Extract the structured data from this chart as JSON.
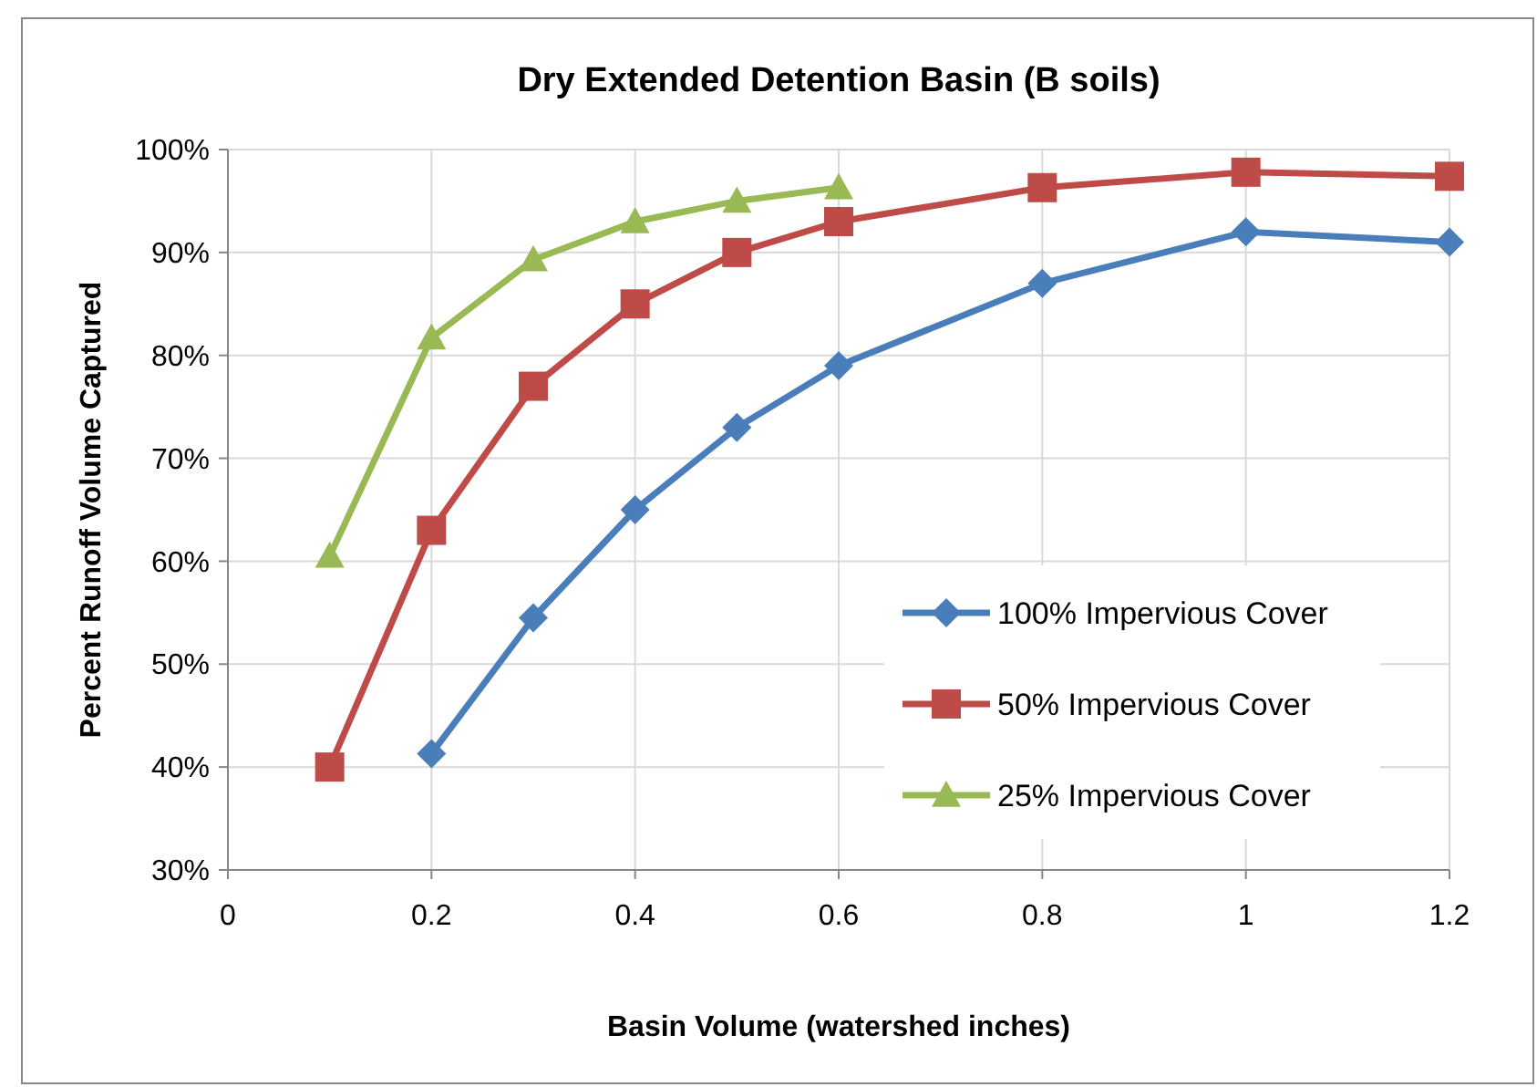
{
  "chart_data": {
    "type": "line",
    "title": "Dry Extended Detention Basin  (B soils)",
    "xlabel": "Basin Volume (watershed inches)",
    "ylabel": "Percent Runoff Volume Captured",
    "xlim": [
      0,
      1.2
    ],
    "xticks": [
      0,
      0.2,
      0.4,
      0.6,
      0.8,
      1,
      1.2
    ],
    "ylim": [
      0.3,
      1
    ],
    "yticks": [
      {
        "value": 0.3,
        "label": "30%"
      },
      {
        "value": 0.4,
        "label": "40%"
      },
      {
        "value": 0.5,
        "label": "50%"
      },
      {
        "value": 0.6,
        "label": "60%"
      },
      {
        "value": 0.7,
        "label": "70%"
      },
      {
        "value": 0.8,
        "label": "80%"
      },
      {
        "value": 0.9,
        "label": "90%"
      },
      {
        "value": 1,
        "label": "100%"
      }
    ],
    "grid": true,
    "legend": "right",
    "line_style": "solid",
    "series": [
      {
        "name": "100% Impervious Cover",
        "color": "#4a7ebb",
        "marker": "diamond",
        "x": [
          0.2,
          0.3,
          0.4,
          0.5,
          0.6,
          0.8,
          1,
          1.2
        ],
        "values": [
          0.413,
          0.545,
          0.65,
          0.73,
          0.79,
          0.87,
          0.92,
          0.91
        ]
      },
      {
        "name": "50% Impervious Cover",
        "color": "#be4b48",
        "marker": "square",
        "x": [
          0.1,
          0.2,
          0.3,
          0.4,
          0.5,
          0.6,
          0.8,
          1,
          1.2
        ],
        "values": [
          0.4,
          0.63,
          0.77,
          0.85,
          0.9,
          0.93,
          0.963,
          0.978,
          0.974
        ]
      },
      {
        "name": "25% Impervious Cover",
        "color": "#98b954",
        "marker": "triangle",
        "x": [
          0.1,
          0.2,
          0.3,
          0.4,
          0.5,
          0.6
        ],
        "values": [
          0.605,
          0.817,
          0.893,
          0.93,
          0.95,
          0.963
        ]
      }
    ]
  }
}
